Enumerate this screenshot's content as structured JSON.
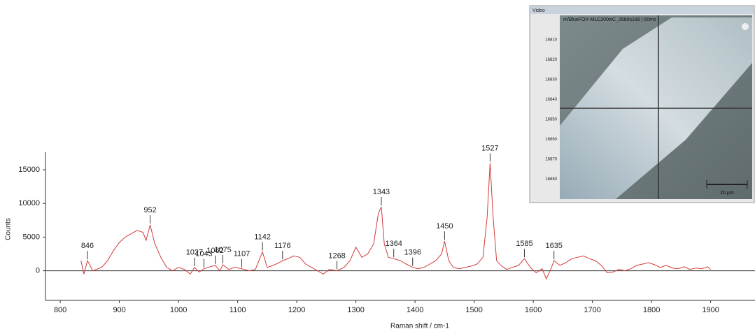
{
  "chart_data": {
    "type": "line",
    "x_label": "Raman shift / cm-1",
    "y_label": "Counts",
    "xlim": [
      775,
      1975
    ],
    "xticks": [
      800,
      900,
      1000,
      1100,
      1200,
      1300,
      1400,
      1500,
      1600,
      1700,
      1800,
      1900
    ],
    "ylim": [
      -4400,
      17600
    ],
    "yticks": [
      0,
      5000,
      10000,
      15000
    ],
    "series": [
      {
        "color": "#d23b3b",
        "x": [
          835,
          840,
          846,
          855,
          870,
          880,
          890,
          900,
          910,
          920,
          930,
          940,
          945,
          952,
          960,
          970,
          980,
          990,
          1000,
          1010,
          1020,
          1027,
          1035,
          1043,
          1050,
          1062,
          1070,
          1075,
          1085,
          1095,
          1107,
          1120,
          1130,
          1142,
          1150,
          1160,
          1170,
          1176,
          1185,
          1195,
          1205,
          1215,
          1225,
          1235,
          1245,
          1255,
          1268,
          1280,
          1290,
          1300,
          1310,
          1320,
          1330,
          1338,
          1343,
          1348,
          1355,
          1364,
          1375,
          1385,
          1396,
          1405,
          1415,
          1425,
          1435,
          1445,
          1450,
          1457,
          1465,
          1475,
          1485,
          1495,
          1505,
          1515,
          1522,
          1527,
          1532,
          1538,
          1545,
          1555,
          1565,
          1575,
          1585,
          1595,
          1605,
          1615,
          1622,
          1630,
          1635,
          1645,
          1655,
          1665,
          1675,
          1685,
          1695,
          1705,
          1715,
          1725,
          1735,
          1745,
          1755,
          1765,
          1775,
          1785,
          1795,
          1805,
          1815,
          1825,
          1835,
          1845,
          1855,
          1865,
          1875,
          1885,
          1895,
          1900
        ],
        "values": [
          1500,
          -500,
          1500,
          0,
          500,
          1500,
          3000,
          4200,
          5000,
          5500,
          6000,
          5700,
          4500,
          6800,
          4000,
          2000,
          500,
          0,
          500,
          200,
          -500,
          500,
          -200,
          300,
          500,
          800,
          0,
          900,
          200,
          500,
          300,
          0,
          200,
          2800,
          500,
          800,
          1200,
          1500,
          1800,
          2200,
          2000,
          1000,
          500,
          0,
          -500,
          200,
          0,
          500,
          1500,
          3500,
          2000,
          2500,
          4000,
          8500,
          9500,
          4000,
          2000,
          1800,
          1500,
          1000,
          500,
          300,
          500,
          1000,
          1500,
          2500,
          4400,
          1500,
          500,
          300,
          500,
          700,
          1000,
          2000,
          8000,
          16000,
          8000,
          1500,
          800,
          200,
          500,
          800,
          1800,
          500,
          -300,
          300,
          -1200,
          300,
          1500,
          800,
          1200,
          1800,
          2000,
          2200,
          1800,
          1500,
          800,
          -300,
          -200,
          200,
          0,
          300,
          800,
          1000,
          1200,
          900,
          500,
          800,
          400,
          300,
          600,
          200,
          400,
          300,
          600,
          200
        ]
      }
    ],
    "peak_labels": [
      846,
      952,
      1027,
      1043,
      1062,
      1075,
      1107,
      1142,
      1176,
      1268,
      1343,
      1364,
      1396,
      1450,
      1527,
      1585,
      1635
    ]
  },
  "video_panel": {
    "title": "Video",
    "caption": "m/BlueFOX-MLC200wC_2680s188 | 60ms",
    "ruler": [
      "16810",
      "16820",
      "16830",
      "16840",
      "16850",
      "16860",
      "16870",
      "16880"
    ],
    "scale": "20 µm"
  }
}
